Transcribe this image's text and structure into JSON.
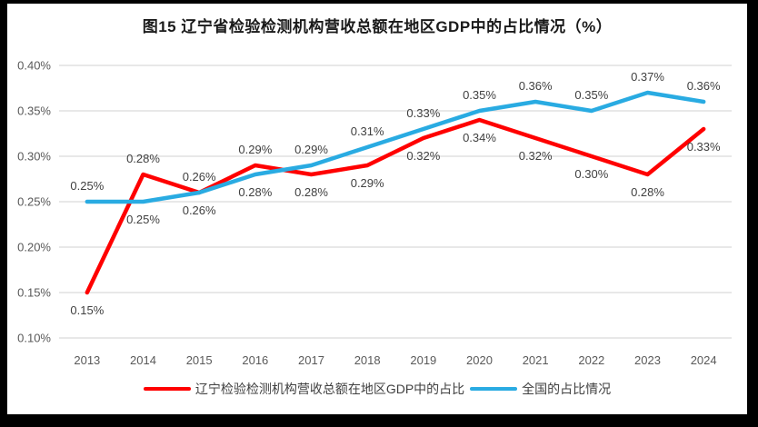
{
  "window": {
    "outer_background": "#000000",
    "chart_background": "#FFFFFF"
  },
  "chart_data": {
    "type": "line",
    "title": "图15 辽宁省检验检测机构营收总额在地区GDP中的占比情况（%）",
    "categories": [
      "2013",
      "2014",
      "2015",
      "2016",
      "2017",
      "2018",
      "2019",
      "2020",
      "2021",
      "2022",
      "2023",
      "2024"
    ],
    "y_axis": {
      "tick_labels": [
        "0.40%",
        "0.35%",
        "0.30%",
        "0.25%",
        "0.20%",
        "0.15%",
        "0.10%"
      ],
      "tick_values": [
        0.4,
        0.35,
        0.3,
        0.25,
        0.2,
        0.15,
        0.1
      ],
      "min": 0.1,
      "max": 0.4,
      "step": 0.05,
      "unit": "%"
    },
    "grid": true,
    "gridline_color": "#D9D9D9",
    "legend_position": "bottom",
    "series": [
      {
        "name": "辽宁检验检测机构营收总额在地区GDP中的占比",
        "color": "#FF0000",
        "values": [
          0.15,
          0.28,
          0.26,
          0.29,
          0.28,
          0.29,
          0.32,
          0.34,
          0.32,
          0.3,
          0.28,
          0.33
        ],
        "point_labels": [
          "0.15%",
          "0.28%",
          "0.26%",
          "0.29%",
          "0.28%",
          "0.29%",
          "0.32%",
          "0.34%",
          "0.32%",
          "0.30%",
          "0.28%",
          "0.33%"
        ],
        "label_side": [
          "below",
          "above",
          "above",
          "above",
          "below",
          "below",
          "below",
          "below",
          "below",
          "below",
          "below",
          "below"
        ]
      },
      {
        "name": "全国的占比情况",
        "color": "#29ABE2",
        "values": [
          0.25,
          0.25,
          0.26,
          0.28,
          0.29,
          0.31,
          0.33,
          0.35,
          0.36,
          0.35,
          0.37,
          0.36
        ],
        "point_labels": [
          "0.25%",
          "0.25%",
          "0.26%",
          "0.28%",
          "0.29%",
          "0.31%",
          "0.33%",
          "0.35%",
          "0.36%",
          "0.35%",
          "0.37%",
          "0.36%"
        ],
        "label_side": [
          "above",
          "below",
          "below",
          "below",
          "above",
          "above",
          "above",
          "above",
          "above",
          "above",
          "above",
          "above"
        ]
      }
    ]
  }
}
